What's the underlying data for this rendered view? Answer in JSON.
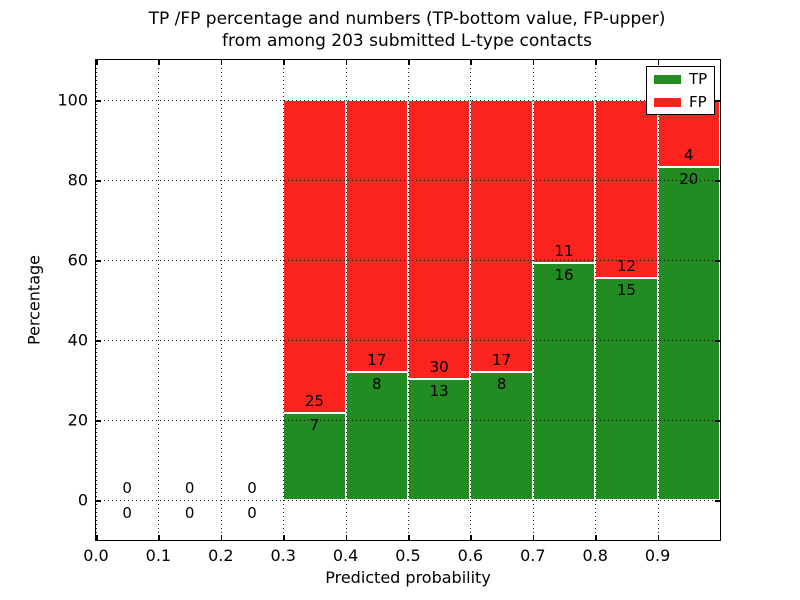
{
  "title": {
    "line1": "TP /FP percentage and numbers (TP-bottom value, FP-upper)",
    "line2": "from among 203 submitted L-type contacts"
  },
  "axes": {
    "xlabel": "Predicted probability",
    "ylabel": "Percentage",
    "x_ticks": [
      "0.0",
      "0.1",
      "0.2",
      "0.3",
      "0.4",
      "0.5",
      "0.6",
      "0.7",
      "0.8",
      "0.9"
    ],
    "y_ticks": [
      0,
      20,
      40,
      60,
      80,
      100
    ],
    "xlim": [
      0.0,
      1.0
    ],
    "ylim": [
      -10,
      110
    ],
    "grid": "dotted, drawn above bars"
  },
  "legend": {
    "position": "upper right",
    "items": [
      {
        "label": "TP",
        "color": "#228b22"
      },
      {
        "label": "FP",
        "color": "#fb231e"
      }
    ]
  },
  "colors": {
    "tp": "#228b22",
    "fp": "#fb231e",
    "bar_edge": "#ffffff",
    "grid": "#000000",
    "text": "#000000"
  },
  "chart_data": {
    "type": "bar",
    "stacked": true,
    "normalized_total_pct": 100,
    "bin_width": 0.1,
    "total_contacts": 203,
    "bins": [
      {
        "x0": 0.0,
        "x1": 0.1,
        "tp": 0,
        "fp": 0,
        "tp_pct": null
      },
      {
        "x0": 0.1,
        "x1": 0.2,
        "tp": 0,
        "fp": 0,
        "tp_pct": null
      },
      {
        "x0": 0.2,
        "x1": 0.3,
        "tp": 0,
        "fp": 0,
        "tp_pct": null
      },
      {
        "x0": 0.3,
        "x1": 0.4,
        "tp": 7,
        "fp": 25,
        "tp_pct": 21.88
      },
      {
        "x0": 0.4,
        "x1": 0.5,
        "tp": 8,
        "fp": 17,
        "tp_pct": 32.0
      },
      {
        "x0": 0.5,
        "x1": 0.6,
        "tp": 13,
        "fp": 30,
        "tp_pct": 30.23
      },
      {
        "x0": 0.6,
        "x1": 0.7,
        "tp": 8,
        "fp": 17,
        "tp_pct": 32.0
      },
      {
        "x0": 0.7,
        "x1": 0.8,
        "tp": 16,
        "fp": 11,
        "tp_pct": 59.26
      },
      {
        "x0": 0.8,
        "x1": 0.9,
        "tp": 15,
        "fp": 12,
        "tp_pct": 55.56
      },
      {
        "x0": 0.9,
        "x1": 1.0,
        "tp": 20,
        "fp": 4,
        "tp_pct": 83.33
      }
    ]
  }
}
